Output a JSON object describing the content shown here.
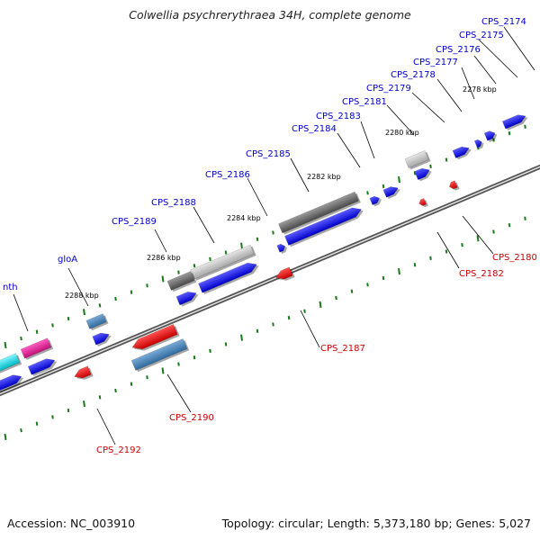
{
  "title": "Colwellia psychrerythraea 34H, complete genome",
  "footer": {
    "accession": "Accession: NC_003910",
    "summary": "Topology: circular; Length: 5,373,180 bp; Genes: 5,027"
  },
  "colors": {
    "forward_gene": "#0a0ae6",
    "reverse_gene": "#e01010",
    "rna_gray": "#808080",
    "rna_light": "#c0c0c0",
    "steel_blue": "#4a84b8",
    "magenta": "#e0219a",
    "cyan": "#00d8e0",
    "tick_green": "#1a7a1a",
    "label_blue": "#0000cc",
    "label_red": "#cc0000"
  },
  "scale_labels": [
    "2278 kbp",
    "2280 kbp",
    "2282 kbp",
    "2284 kbp",
    "2286 kbp",
    "2288 kbp"
  ],
  "top_labels": [
    "CPS_2174",
    "CPS_2175",
    "CPS_2176",
    "CPS_2177",
    "CPS_2178",
    "CPS_2179",
    "CPS_2181",
    "CPS_2183",
    "CPS_2184",
    "CPS_2185",
    "CPS_2186",
    "CPS_2188",
    "CPS_2189",
    "gloA",
    "nth"
  ],
  "bottom_labels": [
    "CPS_2180",
    "CPS_2182",
    "CPS_2187",
    "CPS_2190",
    "CPS_2192"
  ]
}
